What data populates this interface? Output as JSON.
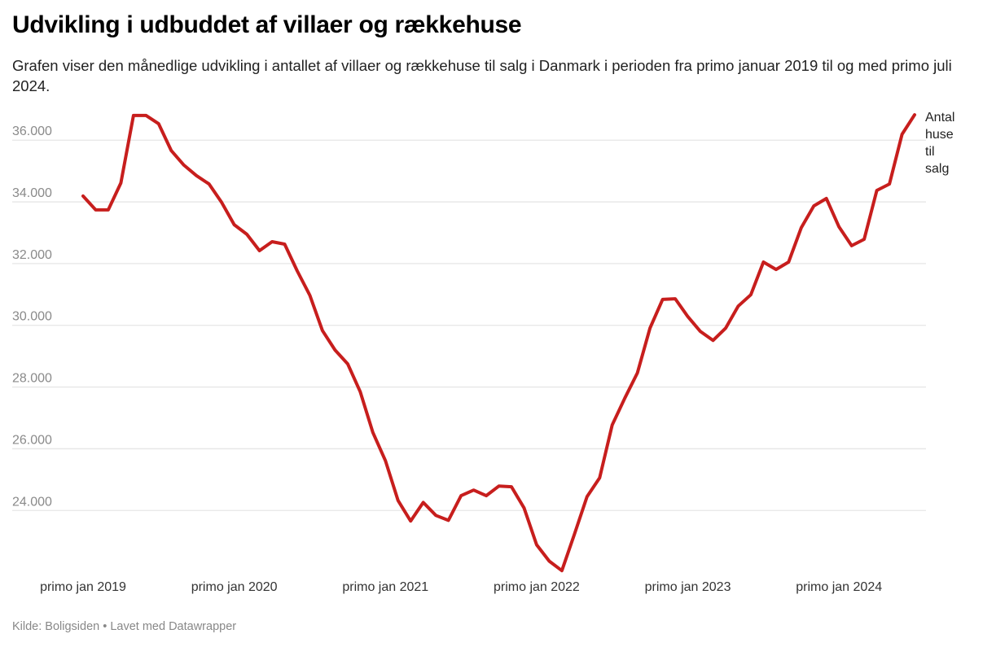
{
  "title": "Udvikling i udbuddet af villaer og rækkehuse",
  "subtitle": "Grafen viser den månedlige udvikling i antallet af villaer og rækkehuse til salg i Danmark i perioden fra primo januar 2019 til og med primo juli 2024.",
  "source": "Kilde: Boligsiden • Lavet med Datawrapper",
  "colors": {
    "line": "#c71e1d",
    "grid": "#e6e6e6"
  },
  "chart_data": {
    "type": "line",
    "title": "Udvikling i udbuddet af villaer og rækkehuse",
    "xlabel": "",
    "ylabel": "",
    "ylim": [
      21950,
      36850
    ],
    "grid": true,
    "y_ticks": [
      24000,
      26000,
      28000,
      30000,
      32000,
      34000,
      36000
    ],
    "y_tick_labels": [
      "24.000",
      "26.000",
      "28.000",
      "30.000",
      "32.000",
      "34.000",
      "36.000"
    ],
    "x_start": "2019-01",
    "x_tick_labels": [
      "primo jan 2019",
      "primo jan 2020",
      "primo jan 2021",
      "primo jan 2022",
      "primo jan 2023",
      "primo jan 2024"
    ],
    "x_tick_month_index": [
      0,
      12,
      24,
      36,
      48,
      60
    ],
    "series": [
      {
        "name": "Antal huse til salg",
        "label_lines": [
          "Antal",
          "huse",
          "til",
          "salg"
        ],
        "values": [
          34190,
          33740,
          33740,
          34610,
          36800,
          36800,
          36530,
          35660,
          35190,
          34850,
          34580,
          33980,
          33260,
          32950,
          32420,
          32710,
          32630,
          31760,
          30970,
          29830,
          29200,
          28750,
          27850,
          26530,
          25610,
          24320,
          23660,
          24260,
          23840,
          23680,
          24480,
          24660,
          24480,
          24790,
          24770,
          24080,
          22890,
          22360,
          22050,
          23230,
          24450,
          25060,
          26770,
          27640,
          28460,
          29910,
          30840,
          30860,
          30280,
          29800,
          29510,
          29910,
          30620,
          30990,
          32050,
          31810,
          32050,
          33160,
          33870,
          34110,
          33190,
          32580,
          32790,
          34370,
          34580,
          36190,
          36820
        ]
      }
    ]
  }
}
